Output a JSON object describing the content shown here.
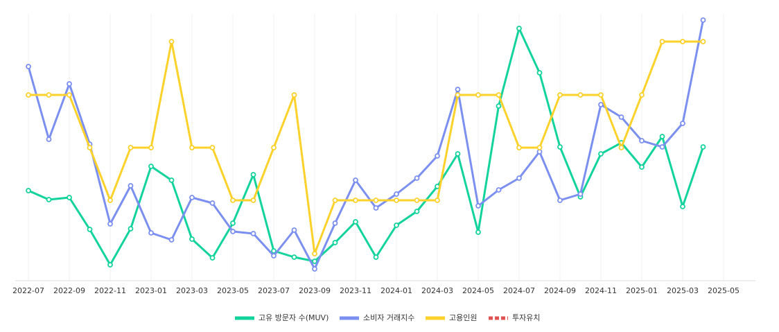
{
  "chart_data": {
    "type": "line",
    "categories": [
      "2022-07",
      null,
      "2022-09",
      null,
      "2022-11",
      null,
      "2023-01",
      null,
      "2023-03",
      null,
      "2023-05",
      null,
      "2023-07",
      null,
      "2023-09",
      null,
      "2023-11",
      null,
      "2024-01",
      null,
      "2024-03",
      null,
      "2024-05",
      null,
      "2024-07",
      null,
      "2024-09",
      null,
      "2024-11",
      null,
      "2025-01",
      null,
      "2025-03",
      null,
      "2025-05"
    ],
    "series": [
      {
        "name": "고유 방문자 수(MUV)",
        "color": "#12d39b",
        "values": [
          130,
          117,
          120,
          74,
          23,
          75,
          165,
          145,
          60,
          33,
          83,
          153,
          43,
          34,
          28,
          55,
          85,
          34,
          80,
          100,
          136,
          183,
          70,
          252,
          364,
          300,
          193,
          121,
          183,
          199,
          164,
          208,
          107,
          193,
          null
        ]
      },
      {
        "name": "소비자 거래지수",
        "color": "#7b8ff0",
        "values": [
          309,
          204,
          284,
          197,
          82,
          137,
          69,
          59,
          120,
          112,
          71,
          68,
          36,
          73,
          17,
          83,
          145,
          105,
          125,
          148,
          180,
          276,
          108,
          131,
          148,
          186,
          116,
          125,
          254,
          236,
          202,
          193,
          227,
          376,
          null
        ]
      },
      {
        "name": "고용인원",
        "color": "#fcd12a",
        "values": [
          268,
          268,
          268,
          192,
          116,
          192,
          192,
          345,
          192,
          192,
          116,
          116,
          192,
          268,
          39,
          116,
          116,
          116,
          116,
          116,
          116,
          268,
          268,
          268,
          192,
          192,
          268,
          268,
          268,
          192,
          268,
          345,
          345,
          345,
          null
        ]
      },
      {
        "name": "투자유치",
        "color": "#e05252",
        "dashed": true,
        "values": [
          null,
          null,
          null,
          null,
          null,
          null,
          null,
          null,
          null,
          null,
          null,
          null,
          null,
          null,
          null,
          null,
          null,
          null,
          null,
          null,
          null,
          null,
          null,
          null,
          null,
          null,
          null,
          null,
          null,
          null,
          null,
          null,
          null,
          null,
          null
        ]
      }
    ],
    "ylim": [
      0,
      380
    ],
    "grid": true
  }
}
